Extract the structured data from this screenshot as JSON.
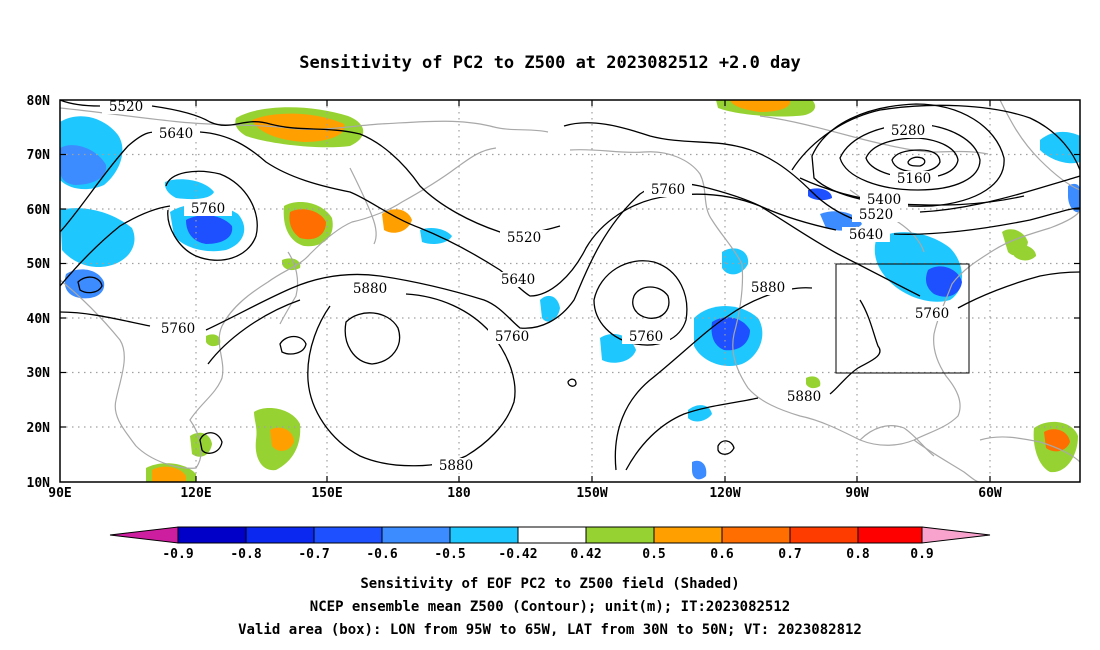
{
  "title": "Sensitivity of PC2 to Z500 at 2023082512 +2.0 day",
  "map": {
    "lat_ticks": [
      "80N",
      "70N",
      "60N",
      "50N",
      "40N",
      "30N",
      "20N",
      "10N"
    ],
    "lon_ticks": [
      "90E",
      "120E",
      "150E",
      "180",
      "150W",
      "120W",
      "90W",
      "60W"
    ],
    "contour_labels": {
      "c5520a": "5520",
      "c5640a": "5640",
      "c5760a": "5760",
      "c5760b": "5760",
      "c5880a": "5880",
      "c5880b": "5880",
      "c5520b": "5520",
      "c5640b": "5640",
      "c5760c": "5760",
      "c5760d": "5760",
      "c5760e": "5760",
      "c5880c": "5880",
      "c5880d": "5880",
      "c5280": "5280",
      "c5160": "5160",
      "c5400": "5400",
      "c5520c": "5520",
      "c5640c": "5640",
      "c5760f": "5760"
    },
    "valid_box": {
      "lon_range": [
        "95W",
        "65W"
      ],
      "lat_range": [
        "30N",
        "50N"
      ]
    },
    "colors": {
      "contour": "#000000",
      "coastline": "#a8a8a8",
      "grid": "#a0a0a0",
      "box": "#000000"
    }
  },
  "colorbar": {
    "labels": [
      "-0.9",
      "-0.8",
      "-0.7",
      "-0.6",
      "-0.5",
      "-0.42",
      "0.42",
      "0.5",
      "0.6",
      "0.7",
      "0.8",
      "0.9"
    ],
    "colors": [
      "#cd1e9f",
      "#0000c8",
      "#0a28f0",
      "#1e50ff",
      "#3c8cff",
      "#1ec8ff",
      "#ffffff",
      "#96d232",
      "#ffa000",
      "#ff6e00",
      "#ff3c00",
      "#ff0000",
      "#f7a3cd"
    ]
  },
  "caption": {
    "line1": "Sensitivity of EOF PC2 to Z500 field (Shaded)",
    "line2": "NCEP ensemble mean Z500 (Contour); unit(m); IT:2023082512",
    "line3": "Valid area (box): LON from 95W to 65W, LAT from 30N to 50N; VT: 2023082812"
  }
}
